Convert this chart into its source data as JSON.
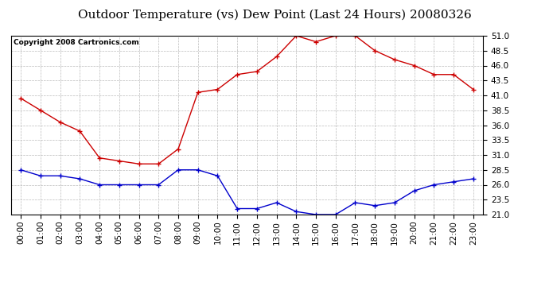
{
  "title": "Outdoor Temperature (vs) Dew Point (Last 24 Hours) 20080326",
  "copyright": "Copyright 2008 Cartronics.com",
  "hours": [
    "00:00",
    "01:00",
    "02:00",
    "03:00",
    "04:00",
    "05:00",
    "06:00",
    "07:00",
    "08:00",
    "09:00",
    "10:00",
    "11:00",
    "12:00",
    "13:00",
    "14:00",
    "15:00",
    "16:00",
    "17:00",
    "18:00",
    "19:00",
    "20:00",
    "21:00",
    "22:00",
    "23:00"
  ],
  "temp": [
    40.5,
    38.5,
    36.5,
    35.0,
    30.5,
    30.0,
    29.5,
    29.5,
    32.0,
    41.5,
    42.0,
    44.5,
    45.0,
    47.5,
    51.0,
    50.0,
    51.0,
    51.0,
    48.5,
    47.0,
    46.0,
    44.5,
    44.5,
    42.0
  ],
  "dew": [
    28.5,
    27.5,
    27.5,
    27.0,
    26.0,
    26.0,
    26.0,
    26.0,
    28.5,
    28.5,
    27.5,
    22.0,
    22.0,
    23.0,
    21.5,
    21.0,
    21.0,
    23.0,
    22.5,
    23.0,
    25.0,
    26.0,
    26.5,
    27.0
  ],
  "temp_color": "#cc0000",
  "dew_color": "#0000cc",
  "ylim_min": 21.0,
  "ylim_max": 51.0,
  "yticks": [
    21.0,
    23.5,
    26.0,
    28.5,
    31.0,
    33.5,
    36.0,
    38.5,
    41.0,
    43.5,
    46.0,
    48.5,
    51.0
  ],
  "bg_color": "#ffffff",
  "plot_bg_color": "#ffffff",
  "grid_color": "#bbbbbb",
  "title_fontsize": 11,
  "tick_fontsize": 7.5,
  "copyright_fontsize": 6.5
}
